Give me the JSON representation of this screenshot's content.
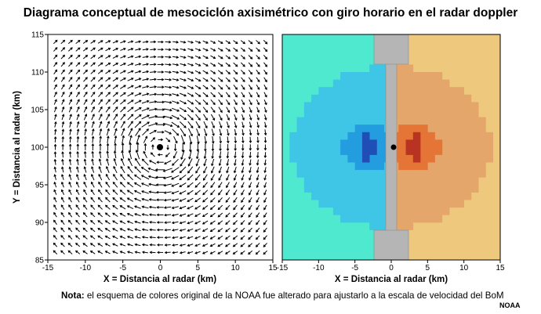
{
  "title": "Diagrama conceptual de mesociclón axisimétrico con giro horario en el radar doppler",
  "left_panel": {
    "xlabel": "X = Distancia al radar (km)",
    "ylabel": "Y = Distancia al radar (km)",
    "xticks": [
      -15,
      -10,
      -5,
      0,
      5,
      10,
      15
    ],
    "yticks": [
      85,
      90,
      95,
      100,
      105,
      110,
      115
    ],
    "xlim": [
      -15,
      15
    ],
    "ylim": [
      85,
      115
    ],
    "center": [
      0,
      100
    ],
    "rotation": "clockwise"
  },
  "right_panel": {
    "xlabel": "X = Distancia al radar (km)",
    "xticks": [
      -15,
      -10,
      -5,
      0,
      5,
      10,
      15
    ],
    "xlim": [
      -15,
      15
    ],
    "ylim": [
      85,
      115
    ],
    "center": [
      0,
      100
    ],
    "colors": {
      "background_left": "#4fe9cf",
      "background_right": "#eec87d",
      "approach_light": "#3fc6e6",
      "approach_mid": "#239ddf",
      "approach_core": "#1f4fb6",
      "recede_light": "#e5a66b",
      "recede_mid": "#e47536",
      "recede_core": "#b93322",
      "no_data": "#b5b5b5"
    }
  },
  "note": {
    "label": "Nota:",
    "text": " el esquema de colores original de la NOAA fue alterado para ajustarlo a la escala de velocidad del BoM"
  },
  "credit": "NOAA"
}
